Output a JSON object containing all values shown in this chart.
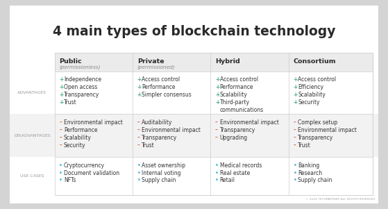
{
  "title": "4 main types of blockchain technology",
  "background_outer": "#d4d4d4",
  "background_inner": "#ffffff",
  "header_bg": "#ebebeb",
  "row_bg_alt": "#f2f2f2",
  "row_bg_main": "#ffffff",
  "col_headers": [
    {
      "label": "Public",
      "sub": "(permissionless)"
    },
    {
      "label": "Private",
      "sub": "(permissioned)"
    },
    {
      "label": "Hybrid",
      "sub": ""
    },
    {
      "label": "Consortium",
      "sub": ""
    }
  ],
  "green_color": "#4caf7d",
  "red_color": "#e07050",
  "blue_color": "#4ab8d8",
  "rows": [
    {
      "label": "ADVANTAGES",
      "symbol": "+",
      "color": "#4caf7d",
      "cells": [
        [
          "Independence",
          "Open access",
          "Transparency",
          "Trust"
        ],
        [
          "Access control",
          "Performance",
          "Simpler consensus"
        ],
        [
          "Access control",
          "Performance",
          "Scalability",
          "Third-party\ncommunications"
        ],
        [
          "Access control",
          "Efficiency",
          "Scalability",
          "Security"
        ]
      ]
    },
    {
      "label": "DISADVANTAGES",
      "symbol": "–",
      "color": "#e07050",
      "cells": [
        [
          "Environmental impact",
          "Performance",
          "Scalability",
          "Security"
        ],
        [
          "Auditability",
          "Environmental impact",
          "Transparency",
          "Trust"
        ],
        [
          "Environmental impact",
          "Transparency",
          "Upgrading"
        ],
        [
          "Complex setup",
          "Environmental impact",
          "Transparency",
          "Trust"
        ]
      ]
    },
    {
      "label": "USE CASES",
      "symbol": "•",
      "color": "#4ab8d8",
      "cells": [
        [
          "Cryptocurrency",
          "Document validation",
          "NFTs"
        ],
        [
          "Asset ownership",
          "Internal voting",
          "Supply chain"
        ],
        [
          "Medical records",
          "Real estate",
          "Retail"
        ],
        [
          "Banking",
          "Research",
          "Supply chain"
        ]
      ]
    }
  ],
  "footer": "© 2024 TECHPARTNER ALL RIGHTS RESERVED",
  "title_fontsize": 13.5,
  "header_fontsize": 6.8,
  "sub_fontsize": 5.2,
  "cell_fontsize": 5.5,
  "row_label_fontsize": 4.5,
  "footer_fontsize": 3.2
}
